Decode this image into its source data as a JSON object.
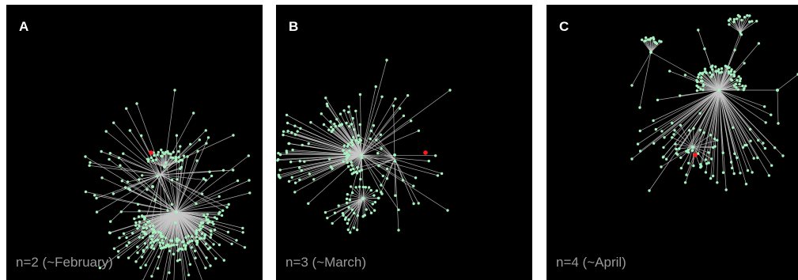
{
  "colors": {
    "background": "#000000",
    "edge": "#c8c8c8",
    "node": "#a6f2bf",
    "highlight_node": "#ff1a1a",
    "label": "#ffffff",
    "caption": "#9a9a9a"
  },
  "panels": [
    {
      "letter": "A",
      "caption": "n=2 (~February)"
    },
    {
      "letter": "B",
      "caption": "n=3 (~March)"
    },
    {
      "letter": "C",
      "caption": "n=4 (~April)"
    }
  ]
}
